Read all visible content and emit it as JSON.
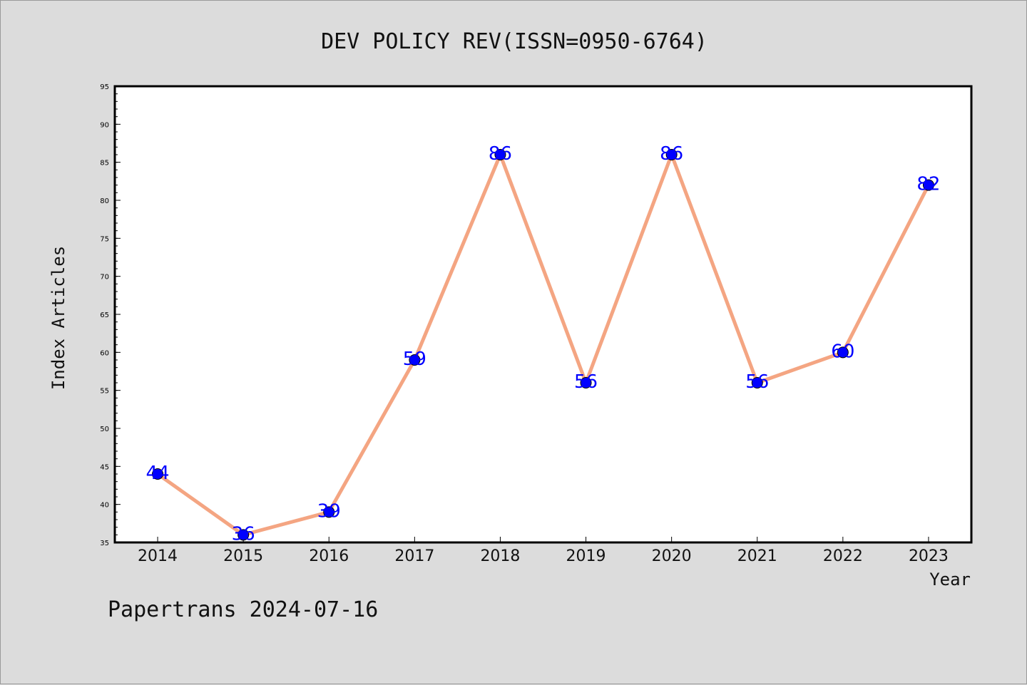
{
  "chart_data": {
    "type": "line",
    "title": "DEV POLICY REV(ISSN=0950-6764)",
    "xlabel": "Year",
    "ylabel": "Index Articles",
    "categories": [
      "2014",
      "2015",
      "2016",
      "2017",
      "2018",
      "2019",
      "2020",
      "2021",
      "2022",
      "2023"
    ],
    "series": [
      {
        "values": [
          44,
          36,
          39,
          59,
          86,
          56,
          86,
          56,
          60,
          82
        ]
      }
    ],
    "data_labels": [
      "44",
      "36",
      "39",
      "59",
      "86",
      "56",
      "86",
      "56",
      "60",
      "82"
    ],
    "yticks": [
      "35",
      "40",
      "45",
      "50",
      "55",
      "60",
      "65",
      "70",
      "75",
      "80",
      "85",
      "90",
      "95"
    ],
    "ylim": [
      35,
      95
    ],
    "grid": false,
    "line_color": "#f4a582",
    "marker_color": "#0000ff",
    "label_color": "#0000ff",
    "background": "#dcdcdc",
    "plot_background": "#ffffff"
  },
  "footer": "Papertrans 2024-07-16"
}
